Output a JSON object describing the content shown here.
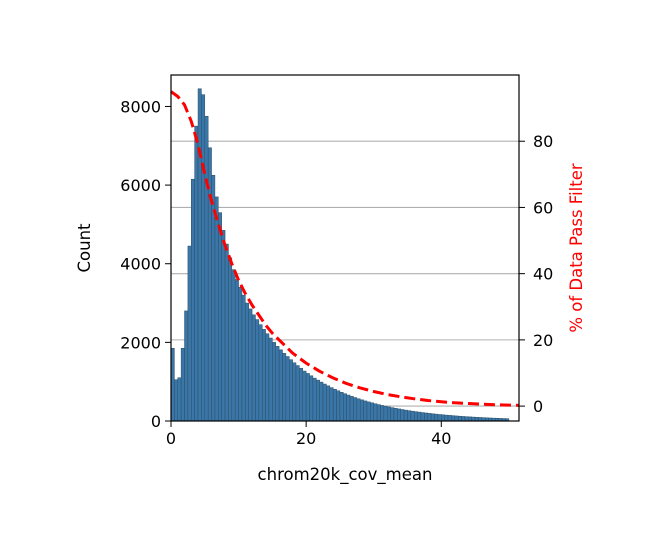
{
  "colors": {
    "bar_fill": "#3a77a8",
    "bar_edge": "#2b4d66",
    "pass_filter_line": "#ff0000",
    "grid": "#b0b0b0",
    "axis": "#000000",
    "right_label": "#ff0000"
  },
  "chart_data": {
    "type": "bar",
    "title": "",
    "xlabel": "chrom20k_cov_mean",
    "ylabel": "Count",
    "y2label": "% of Data Pass Filter",
    "xlim": [
      0,
      51.5
    ],
    "ylim": [
      0,
      8800
    ],
    "y2lim": [
      -4.5,
      100
    ],
    "x_ticks": [
      0,
      20,
      40
    ],
    "y_ticks": [
      0,
      2000,
      4000,
      6000,
      8000
    ],
    "y2_ticks": [
      0,
      20,
      40,
      60,
      80
    ],
    "grid": "right-axis horizontal",
    "histogram": {
      "bin_width": 0.5,
      "x_start": 0,
      "values": [
        1850,
        1050,
        1100,
        1850,
        2800,
        4450,
        6150,
        7500,
        8450,
        8300,
        7750,
        6950,
        6250,
        5700,
        5300,
        4850,
        4500,
        4150,
        3850,
        3600,
        3400,
        3200,
        3000,
        2850,
        2700,
        2580,
        2450,
        2330,
        2220,
        2110,
        2000,
        1900,
        1810,
        1720,
        1640,
        1560,
        1480,
        1410,
        1340,
        1270,
        1210,
        1150,
        1090,
        1040,
        990,
        940,
        895,
        850,
        808,
        768,
        730,
        694,
        660,
        627,
        596,
        566,
        538,
        511,
        486,
        462,
        439,
        417,
        396,
        377,
        358,
        340,
        323,
        307,
        292,
        277,
        263,
        250,
        238,
        226,
        215,
        204,
        194,
        184,
        175,
        166,
        158,
        150,
        143,
        136,
        129,
        122,
        116,
        110,
        105,
        100,
        95,
        90,
        86,
        81,
        77,
        73,
        70,
        66,
        63,
        60
      ]
    },
    "series": [
      {
        "name": "",
        "type": "line",
        "axis": "right",
        "x": [
          0,
          1,
          2,
          3,
          4,
          5,
          6,
          7,
          8,
          9,
          10,
          11,
          12,
          13,
          14,
          15,
          16,
          17,
          18,
          20,
          22,
          24,
          26,
          28,
          30,
          32,
          34,
          36,
          38,
          40,
          42,
          44,
          46,
          48,
          50,
          51.5
        ],
        "y": [
          95,
          93.5,
          91,
          86,
          79,
          70,
          62,
          55,
          48.5,
          43,
          38,
          34,
          30.5,
          27.5,
          24.5,
          22,
          20,
          18,
          16,
          13,
          10.5,
          8.5,
          6.8,
          5.5,
          4.4,
          3.5,
          2.8,
          2.2,
          1.7,
          1.3,
          1.0,
          0.8,
          0.6,
          0.4,
          0.3,
          0.2
        ]
      }
    ]
  }
}
